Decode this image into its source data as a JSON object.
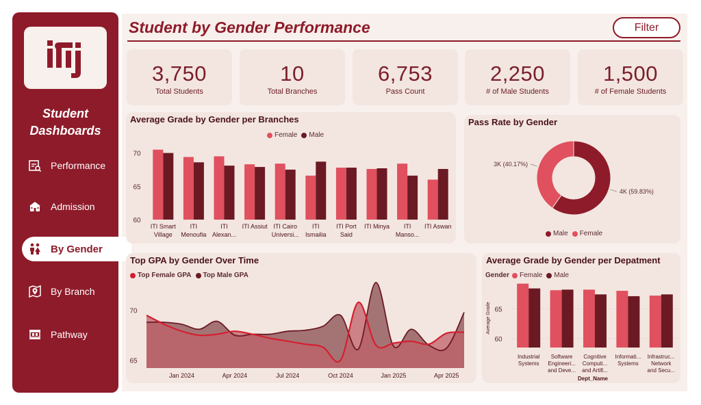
{
  "header": {
    "title": "Student by Gender Performance",
    "filter_label": "Filter"
  },
  "sidebar": {
    "title_line1": "Student",
    "title_line2": "Dashboards",
    "items": [
      {
        "label": "Performance",
        "icon": "report-search-icon"
      },
      {
        "label": "Admission",
        "icon": "school-building-icon"
      },
      {
        "label": "By Gender",
        "icon": "people-gender-icon",
        "active": true
      },
      {
        "label": "By Branch",
        "icon": "map-pin-icon"
      },
      {
        "label": "Pathway",
        "icon": "path-board-icon"
      }
    ]
  },
  "kpis": [
    {
      "value": "3,750",
      "label": "Total Students"
    },
    {
      "value": "10",
      "label": "Total Branches"
    },
    {
      "value": "6,753",
      "label": "Pass Count"
    },
    {
      "value": "2,250",
      "label": "# of Male Students"
    },
    {
      "value": "1,500",
      "label": "# of Female Students"
    }
  ],
  "colors": {
    "brand": "#8e1b2a",
    "female": "#e0505e",
    "male": "#6b1a24",
    "female_area": "#c0606a",
    "male_area": "#8a4e52",
    "female_line": "#d42030"
  },
  "chart_data": [
    {
      "id": "branches",
      "type": "bar",
      "title": "Average Grade by Gender per Branches",
      "categories": [
        [
          "ITI Smart",
          "Village"
        ],
        [
          "ITI",
          "Menoufia"
        ],
        [
          "ITI",
          "Alexan..."
        ],
        [
          "ITI Assiut"
        ],
        [
          "ITI Cairo",
          "Universi..."
        ],
        [
          "ITI",
          "Ismailia"
        ],
        [
          "ITI Port",
          "Said"
        ],
        [
          "ITI Minya"
        ],
        [
          "ITI",
          "Manso..."
        ],
        [
          "ITI Aswan"
        ]
      ],
      "series": [
        {
          "name": "Female",
          "values": [
            70.5,
            69.4,
            69.5,
            68.3,
            68.4,
            66.6,
            67.8,
            67.6,
            68.4,
            66.0
          ]
        },
        {
          "name": "Male",
          "values": [
            70.0,
            68.6,
            68.1,
            67.9,
            67.5,
            68.7,
            67.8,
            67.7,
            66.6,
            67.6
          ]
        }
      ],
      "yticks": [
        60,
        65,
        70
      ],
      "ylim": [
        60,
        71.5
      ],
      "legend": "top-center"
    },
    {
      "id": "passrate",
      "type": "pie",
      "title": "Pass Rate by Gender",
      "series": [
        {
          "name": "Male",
          "value": 59.83,
          "label": "4K (59.83%)"
        },
        {
          "name": "Female",
          "value": 40.17,
          "label": "3K (40.17%)"
        }
      ],
      "legend": "bottom-center"
    },
    {
      "id": "topgpa",
      "type": "area",
      "title": "Top GPA by Gender Over Time",
      "x": [
        "2023-11",
        "2023-12",
        "2024-01",
        "2024-02",
        "2024-03",
        "2024-04",
        "2024-05",
        "2024-06",
        "2024-07",
        "2024-08",
        "2024-09",
        "2024-10",
        "2024-11",
        "2024-12",
        "2025-01",
        "2025-02",
        "2025-03",
        "2025-04",
        "2025-05"
      ],
      "xticks": [
        "Jan 2024",
        "Apr 2024",
        "Jul 2024",
        "Oct 2024",
        "Jan 2025",
        "Apr 2025"
      ],
      "series": [
        {
          "name": "Top Female GPA",
          "values": [
            69.5,
            68.6,
            67.9,
            67.5,
            67.6,
            67.9,
            67.6,
            67.2,
            66.9,
            66.6,
            66.3,
            65.0,
            70.8,
            66.5,
            66.7,
            66.9,
            66.6,
            67.7,
            67.8
          ]
        },
        {
          "name": "Top Male GPA",
          "values": [
            68.8,
            68.8,
            68.6,
            68.1,
            68.9,
            67.5,
            67.6,
            67.6,
            67.9,
            68.0,
            68.4,
            69.5,
            66.1,
            72.8,
            66.4,
            68.1,
            66.5,
            66.2,
            69.8
          ]
        }
      ],
      "yticks": [
        65,
        70
      ],
      "ylim": [
        64.2,
        73
      ],
      "legend": "top-left"
    },
    {
      "id": "departments",
      "type": "bar",
      "title": "Average Grade by Gender per Depatment",
      "legend_title": "Gender",
      "ylabel": "Average Grade",
      "xlabel": "Dept_Name",
      "categories": [
        [
          "Industrial",
          "Systems"
        ],
        [
          "Software",
          "Engineeri...",
          "and Deve..."
        ],
        [
          "Cognitive",
          "Computi...",
          "and Artifi..."
        ],
        [
          "Informati...",
          "Systems"
        ],
        [
          "Infrastruc...",
          "Network",
          "and Secu..."
        ]
      ],
      "series": [
        {
          "name": "Female",
          "values": [
            69.2,
            68.1,
            68.2,
            68.0,
            67.2
          ]
        },
        {
          "name": "Male",
          "values": [
            68.4,
            68.2,
            67.4,
            67.1,
            67.4
          ]
        }
      ],
      "yticks": [
        60,
        65
      ],
      "ylim": [
        58.5,
        69.5
      ],
      "legend": "top-left"
    }
  ]
}
